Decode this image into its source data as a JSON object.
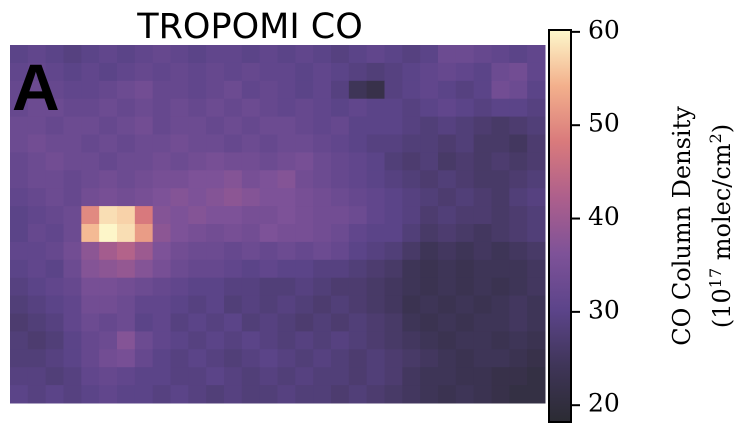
{
  "chart_data": {
    "type": "heatmap",
    "title": "TROPOMI CO",
    "panel_label": "A",
    "colorbar_label": "CO Column Density",
    "colorbar_unit": [
      "(10",
      "17",
      " molec/cm",
      "2",
      ")"
    ],
    "clim": [
      18.2,
      60.2
    ],
    "cticks": [
      20,
      30,
      40,
      50,
      60
    ],
    "colormap": [
      "#2b2b33",
      "#3f3558",
      "#5c448a",
      "#7e5298",
      "#ad5f8c",
      "#d97a7c",
      "#f3b08c",
      "#fdf8cb"
    ],
    "z": [
      [
        30,
        31,
        30,
        29,
        30,
        31,
        30,
        31,
        32,
        31,
        30,
        31,
        31,
        30,
        31,
        30,
        31,
        30,
        29,
        30,
        31,
        30,
        29,
        30,
        33,
        33,
        32,
        31,
        30,
        31
      ],
      [
        31,
        32,
        31,
        30,
        31,
        30,
        31,
        32,
        31,
        32,
        31,
        32,
        31,
        32,
        31,
        31,
        30,
        31,
        30,
        29,
        28,
        29,
        30,
        31,
        32,
        31,
        30,
        33,
        34,
        31
      ],
      [
        32,
        33,
        32,
        31,
        31,
        32,
        33,
        34,
        32,
        32,
        31,
        32,
        33,
        31,
        32,
        31,
        30,
        31,
        29,
        24,
        22,
        29,
        30,
        31,
        30,
        29,
        30,
        34,
        33,
        30
      ],
      [
        32,
        33,
        33,
        32,
        32,
        33,
        32,
        33,
        32,
        33,
        32,
        33,
        32,
        33,
        32,
        31,
        32,
        31,
        30,
        31,
        30,
        30,
        29,
        30,
        31,
        30,
        29,
        30,
        30,
        29
      ],
      [
        33,
        33,
        32,
        33,
        33,
        32,
        33,
        34,
        32,
        33,
        33,
        32,
        33,
        32,
        33,
        33,
        32,
        31,
        32,
        30,
        30,
        30,
        29,
        28,
        29,
        28,
        27,
        26,
        27,
        28
      ],
      [
        33,
        34,
        33,
        33,
        32,
        33,
        32,
        33,
        33,
        34,
        33,
        33,
        32,
        33,
        32,
        33,
        33,
        32,
        31,
        30,
        29,
        29,
        28,
        28,
        27,
        28,
        26,
        26,
        25,
        27
      ],
      [
        32,
        33,
        34,
        33,
        33,
        32,
        33,
        33,
        34,
        33,
        34,
        35,
        34,
        34,
        33,
        34,
        35,
        33,
        32,
        31,
        30,
        28,
        27,
        28,
        26,
        27,
        26,
        27,
        26,
        27
      ],
      [
        32,
        33,
        33,
        32,
        33,
        34,
        33,
        34,
        35,
        35,
        36,
        36,
        37,
        35,
        36,
        37,
        34,
        33,
        32,
        31,
        30,
        29,
        28,
        27,
        28,
        27,
        26,
        26,
        27,
        28
      ],
      [
        31,
        32,
        33,
        32,
        34,
        35,
        34,
        35,
        36,
        37,
        36,
        37,
        38,
        37,
        36,
        36,
        35,
        34,
        33,
        32,
        31,
        30,
        29,
        28,
        27,
        28,
        27,
        26,
        28,
        29
      ],
      [
        30,
        31,
        32,
        33,
        50,
        58,
        57,
        48,
        37,
        36,
        37,
        36,
        36,
        35,
        35,
        36,
        35,
        34,
        34,
        33,
        31,
        30,
        29,
        27,
        28,
        27,
        27,
        26,
        27,
        28
      ],
      [
        30,
        32,
        31,
        33,
        55,
        60,
        58,
        52,
        38,
        36,
        35,
        34,
        35,
        34,
        36,
        35,
        35,
        34,
        33,
        31,
        30,
        30,
        28,
        26,
        27,
        26,
        25,
        26,
        27,
        28
      ],
      [
        31,
        31,
        32,
        34,
        38,
        41,
        43,
        40,
        36,
        34,
        33,
        33,
        32,
        33,
        32,
        33,
        32,
        33,
        32,
        30,
        29,
        28,
        26,
        24,
        25,
        24,
        25,
        24,
        25,
        26
      ],
      [
        30,
        31,
        30,
        33,
        37,
        38,
        39,
        37,
        35,
        33,
        32,
        32,
        31,
        30,
        31,
        30,
        30,
        29,
        29,
        28,
        27,
        26,
        24,
        23,
        24,
        23,
        24,
        24,
        24,
        25
      ],
      [
        29,
        30,
        31,
        32,
        35,
        35,
        34,
        33,
        32,
        31,
        30,
        30,
        29,
        29,
        28,
        28,
        29,
        28,
        27,
        27,
        26,
        25,
        24,
        23,
        24,
        23,
        24,
        23,
        24,
        25
      ],
      [
        28,
        29,
        30,
        31,
        34,
        34,
        33,
        31,
        31,
        30,
        29,
        30,
        28,
        29,
        28,
        29,
        28,
        27,
        28,
        27,
        26,
        25,
        23,
        24,
        23,
        24,
        23,
        24,
        25,
        24
      ],
      [
        27,
        28,
        29,
        31,
        33,
        32,
        33,
        30,
        31,
        29,
        30,
        29,
        30,
        28,
        29,
        28,
        27,
        28,
        27,
        28,
        27,
        26,
        24,
        23,
        24,
        23,
        24,
        24,
        25,
        24
      ],
      [
        28,
        27,
        28,
        30,
        32,
        33,
        37,
        33,
        31,
        30,
        29,
        30,
        29,
        30,
        29,
        28,
        29,
        28,
        29,
        28,
        27,
        26,
        25,
        24,
        23,
        24,
        24,
        23,
        24,
        23
      ],
      [
        28,
        28,
        29,
        30,
        32,
        34,
        35,
        32,
        30,
        29,
        30,
        29,
        28,
        29,
        30,
        29,
        28,
        29,
        28,
        27,
        28,
        27,
        26,
        25,
        24,
        23,
        24,
        24,
        23,
        22
      ],
      [
        29,
        29,
        28,
        29,
        31,
        32,
        31,
        30,
        30,
        29,
        29,
        30,
        29,
        28,
        29,
        28,
        29,
        28,
        28,
        27,
        28,
        27,
        25,
        24,
        24,
        23,
        23,
        22,
        22,
        21
      ],
      [
        30,
        29,
        30,
        29,
        30,
        31,
        30,
        30,
        29,
        30,
        29,
        28,
        29,
        28,
        28,
        29,
        28,
        28,
        27,
        28,
        27,
        26,
        25,
        24,
        23,
        24,
        23,
        22,
        21,
        21
      ]
    ]
  }
}
